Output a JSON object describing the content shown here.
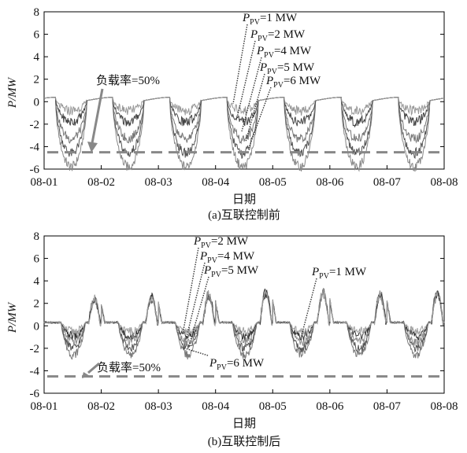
{
  "chart_data": [
    {
      "type": "line",
      "caption": "(a)互联控制前",
      "xlabel": "日期",
      "ylabel": "P/MW",
      "x_ticks": [
        "08-01",
        "08-02",
        "08-03",
        "08-04",
        "08-05",
        "08-06",
        "08-07",
        "08-08"
      ],
      "ylim": [
        -6,
        8
      ],
      "y_ticks": [
        8,
        6,
        4,
        2,
        0,
        -2,
        -4,
        -6
      ],
      "grid": false,
      "day_shape": {
        "night_value": 0.3,
        "dip_start": 0.2,
        "dip_end": 0.75,
        "dip_levels": [
          {
            "pv": "1 MW",
            "min": -5.8,
            "color": "#888888"
          },
          {
            "pv": "2 MW",
            "min": -4.6,
            "color": "#555555"
          },
          {
            "pv": "4 MW",
            "min": -3.3,
            "color": "#777777"
          },
          {
            "pv": "5 MW",
            "min": -1.8,
            "color": "#444444"
          },
          {
            "pv": "6 MW",
            "min": -0.8,
            "color": "#999999"
          }
        ]
      },
      "reference_line": {
        "label": "负载率=50%",
        "value": -4.5,
        "color": "#888888"
      },
      "annotations": [
        {
          "prefix": "P",
          "sub": "PV",
          "text": "=1 MW"
        },
        {
          "prefix": "P",
          "sub": "PV",
          "text": "=2 MW"
        },
        {
          "prefix": "P",
          "sub": "PV",
          "text": "=4 MW"
        },
        {
          "prefix": "P",
          "sub": "PV",
          "text": "=5 MW"
        },
        {
          "prefix": "P",
          "sub": "PV",
          "text": "=6 MW"
        }
      ]
    },
    {
      "type": "line",
      "caption": "(b)互联控制后",
      "xlabel": "日期",
      "ylabel": "P/MW",
      "x_ticks": [
        "08-01",
        "08-02",
        "08-03",
        "08-04",
        "08-05",
        "08-06",
        "08-07",
        "08-08"
      ],
      "ylim": [
        -6,
        8
      ],
      "y_ticks": [
        8,
        6,
        4,
        2,
        0,
        -2,
        -4,
        -6
      ],
      "grid": false,
      "day_shape": {
        "night_value": 0.3,
        "evening_peak": [
          2.6,
          2.8,
          3.0,
          3.2,
          3.3,
          3.0,
          3.2
        ],
        "dip_levels": [
          {
            "pv": "1 MW",
            "min": -2.6
          },
          {
            "pv": "2 MW",
            "min": -2.0
          },
          {
            "pv": "4 MW",
            "min": -1.4
          },
          {
            "pv": "5 MW",
            "min": -0.9
          },
          {
            "pv": "6 MW",
            "min": -0.5
          }
        ]
      },
      "reference_line": {
        "label": "负载率=50%",
        "value": -4.5,
        "color": "#888888"
      },
      "annotations": [
        {
          "prefix": "P",
          "sub": "PV",
          "text": "=2 MW"
        },
        {
          "prefix": "P",
          "sub": "PV",
          "text": "=4 MW"
        },
        {
          "prefix": "P",
          "sub": "PV",
          "text": "=5 MW"
        },
        {
          "prefix": "P",
          "sub": "PV",
          "text": "=1 MW"
        },
        {
          "prefix": "P",
          "sub": "PV",
          "text": "=6 MW"
        }
      ]
    }
  ]
}
